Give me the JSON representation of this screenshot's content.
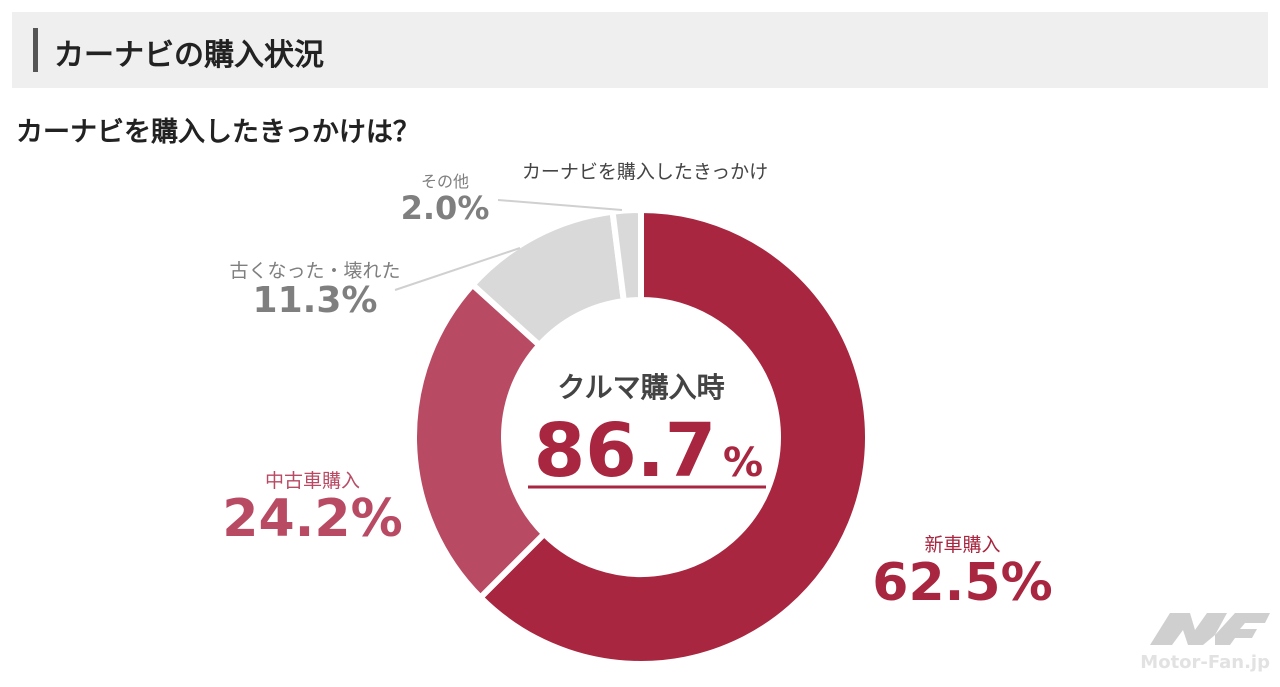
{
  "header": {
    "title": "カーナビの購入状況"
  },
  "subtitle": "カーナビを購入したきっかけは？",
  "center": {
    "label": "クルマ購入時",
    "value": "86.7",
    "unit": "%"
  },
  "logo": {
    "text": "Motor-Fan.jp"
  },
  "colors": {
    "new": "#a8263f",
    "used": "#b94a63",
    "other": "#d9d9d9",
    "label_gray": "#7f7f7f"
  },
  "chart_data": {
    "type": "pie",
    "title": "カーナビを購入したきっかけ",
    "donut": true,
    "categories": [
      "新車購入",
      "中古車購入",
      "古くなった・壊れた",
      "その他"
    ],
    "values": [
      62.5,
      24.2,
      11.3,
      2.0
    ],
    "value_labels": [
      "62.5%",
      "24.2%",
      "11.3%",
      "2.0%"
    ],
    "colors": [
      "#a8263f",
      "#b94a63",
      "#d9d9d9",
      "#d9d9d9"
    ],
    "start": "12 o'clock, clockwise"
  }
}
